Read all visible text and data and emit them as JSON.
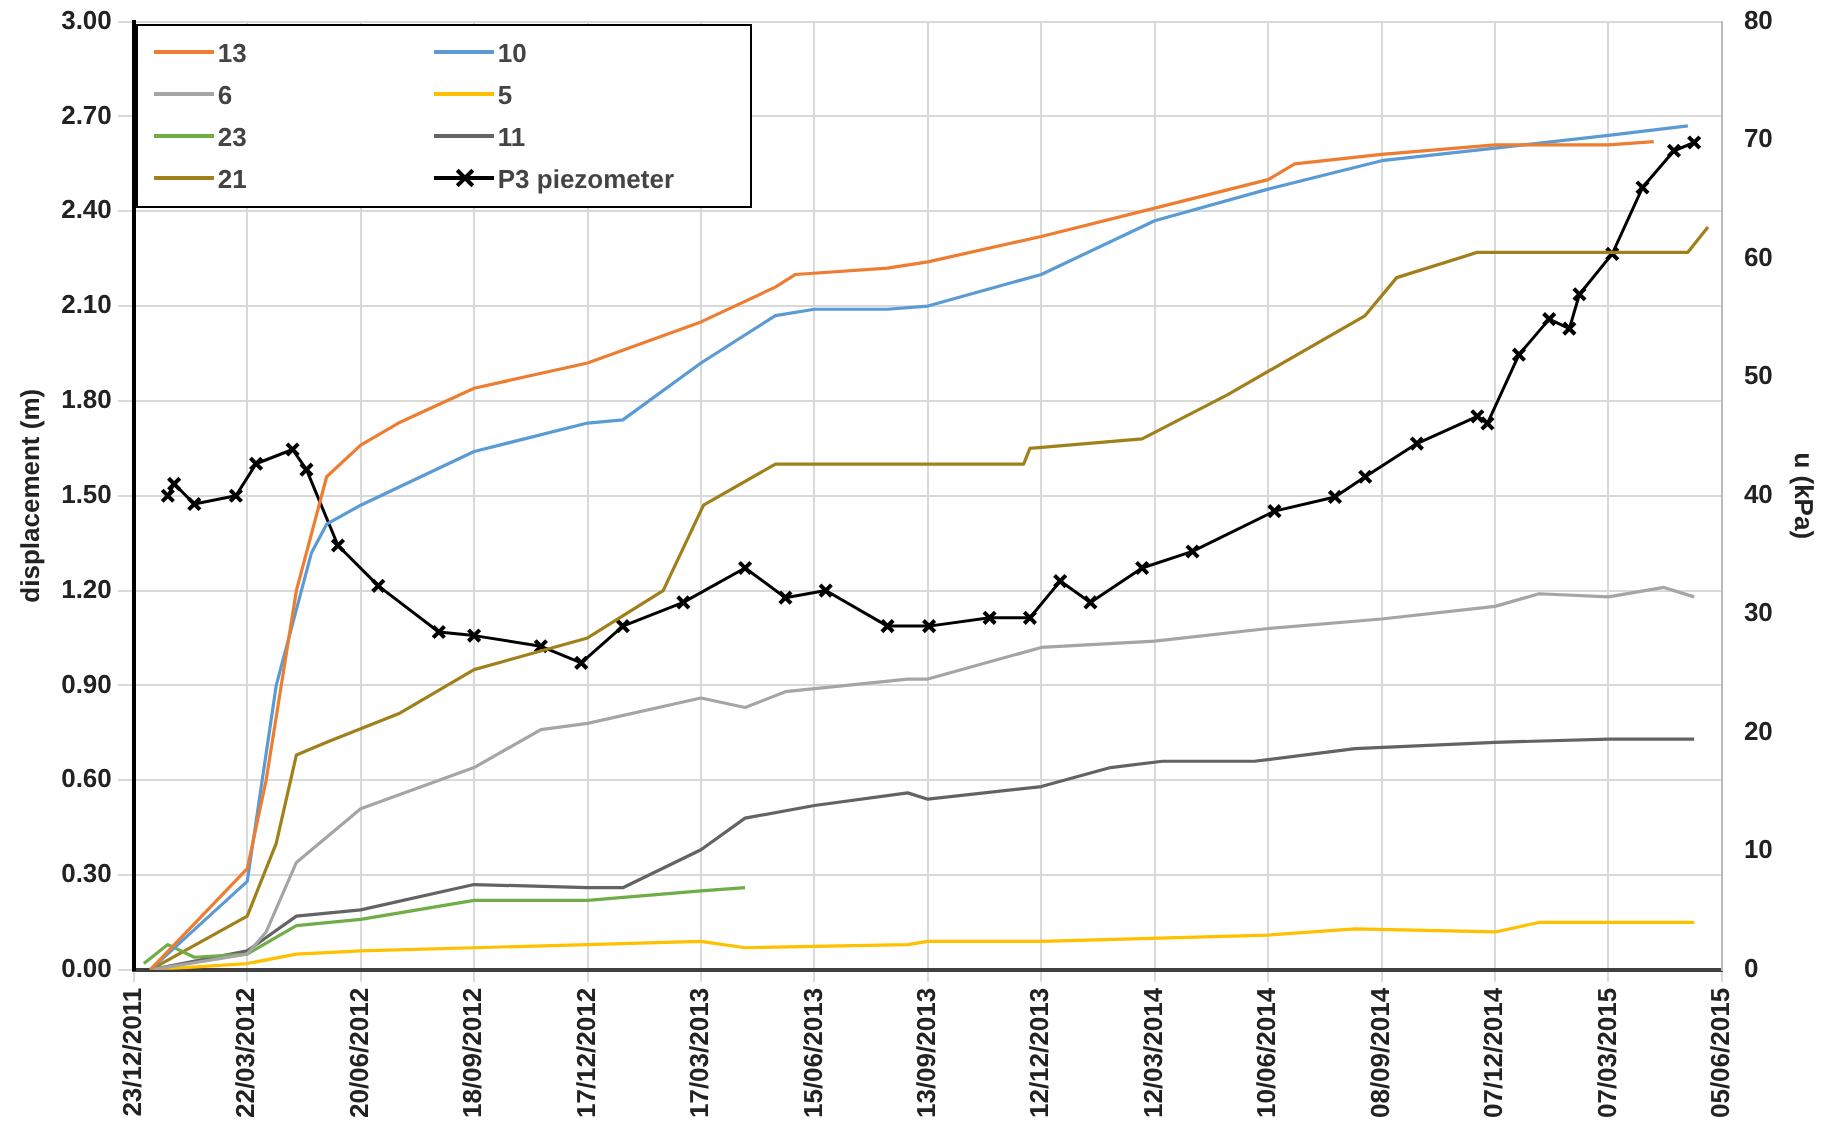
{
  "chart_data": {
    "type": "line",
    "xlabel": null,
    "ylabel": "displacement (m)",
    "y2label": "u (kPa)",
    "xlim": [
      "2011-12-23",
      "2015-06-05"
    ],
    "xticks": [
      {
        "value": "2011-12-23",
        "label": "23/12/2011"
      },
      {
        "value": "2012-03-22",
        "label": "22/03/2012"
      },
      {
        "value": "2012-06-20",
        "label": "20/06/2012"
      },
      {
        "value": "2012-09-18",
        "label": "18/09/2012"
      },
      {
        "value": "2012-12-17",
        "label": "17/12/2012"
      },
      {
        "value": "2013-03-17",
        "label": "17/03/2013"
      },
      {
        "value": "2013-06-15",
        "label": "15/06/2013"
      },
      {
        "value": "2013-09-13",
        "label": "13/09/2013"
      },
      {
        "value": "2013-12-12",
        "label": "12/12/2013"
      },
      {
        "value": "2014-03-12",
        "label": "12/03/2014"
      },
      {
        "value": "2014-06-10",
        "label": "10/06/2014"
      },
      {
        "value": "2014-09-08",
        "label": "08/09/2014"
      },
      {
        "value": "2014-12-07",
        "label": "07/12/2014"
      },
      {
        "value": "2015-03-07",
        "label": "07/03/2015"
      },
      {
        "value": "2015-06-05",
        "label": "05/06/2015"
      }
    ],
    "ylim": [
      0,
      3
    ],
    "yticks": [
      {
        "value": 0,
        "label": "0.00"
      },
      {
        "value": 0.3,
        "label": "0.30"
      },
      {
        "value": 0.6,
        "label": "0.60"
      },
      {
        "value": 0.9,
        "label": "0.90"
      },
      {
        "value": 1.2,
        "label": "1.20"
      },
      {
        "value": 1.5,
        "label": "1.50"
      },
      {
        "value": 1.8,
        "label": "1.80"
      },
      {
        "value": 2.1,
        "label": "2.10"
      },
      {
        "value": 2.4,
        "label": "2.40"
      },
      {
        "value": 2.7,
        "label": "2.70"
      },
      {
        "value": 3,
        "label": "3.00"
      }
    ],
    "y2lim": [
      0,
      80
    ],
    "y2ticks": [
      0,
      10,
      20,
      30,
      40,
      50,
      60,
      70,
      80
    ],
    "grid": true,
    "legend": "top left",
    "marker": "none",
    "line_style": "solid",
    "series": [
      {
        "name": "13",
        "color": "#ed7d31",
        "x": [
          "2012-01-05",
          "2012-03-22",
          "2012-04-06",
          "2012-04-30",
          "2012-05-24",
          "2012-06-20",
          "2012-07-20",
          "2012-09-18",
          "2012-12-17",
          "2013-03-17",
          "2013-05-15",
          "2013-05-31",
          "2013-08-12",
          "2013-09-13",
          "2013-12-12",
          "2014-03-12",
          "2014-06-10",
          "2014-07-01",
          "2014-09-08",
          "2014-12-07",
          "2015-03-07",
          "2015-04-12"
        ],
        "values": [
          0,
          0.32,
          0.6,
          1.2,
          1.56,
          1.66,
          1.73,
          1.84,
          1.92,
          2.05,
          2.16,
          2.2,
          2.22,
          2.24,
          2.32,
          2.41,
          2.5,
          2.55,
          2.58,
          2.61,
          2.61,
          2.62
        ]
      },
      {
        "name": "10",
        "color": "#5b9bd5",
        "x": [
          "2012-01-05",
          "2012-03-22",
          "2012-04-14",
          "2012-05-12",
          "2012-05-24",
          "2012-06-20",
          "2012-09-18",
          "2012-12-17",
          "2013-01-14",
          "2013-03-17",
          "2013-05-15",
          "2013-06-15",
          "2013-08-12",
          "2013-09-13",
          "2013-12-12",
          "2014-03-12",
          "2014-06-10",
          "2014-09-08",
          "2014-12-07",
          "2015-03-07",
          "2015-05-09"
        ],
        "values": [
          0,
          0.28,
          0.9,
          1.32,
          1.41,
          1.47,
          1.64,
          1.73,
          1.74,
          1.92,
          2.07,
          2.09,
          2.09,
          2.1,
          2.2,
          2.37,
          2.47,
          2.56,
          2.6,
          2.64,
          2.67
        ]
      },
      {
        "name": "6",
        "color": "#a5a5a5",
        "x": [
          "2012-01-05",
          "2012-03-22",
          "2012-04-06",
          "2012-04-30",
          "2012-06-20",
          "2012-09-18",
          "2012-11-10",
          "2012-12-17",
          "2013-03-17",
          "2013-04-21",
          "2013-05-23",
          "2013-08-28",
          "2013-09-13",
          "2013-12-12",
          "2014-03-12",
          "2014-06-10",
          "2014-09-08",
          "2014-12-07",
          "2015-01-11",
          "2015-03-07",
          "2015-04-20",
          "2015-05-14"
        ],
        "values": [
          0,
          0.05,
          0.12,
          0.34,
          0.51,
          0.64,
          0.76,
          0.78,
          0.86,
          0.83,
          0.88,
          0.92,
          0.92,
          1.02,
          1.04,
          1.08,
          1.11,
          1.15,
          1.19,
          1.18,
          1.21,
          1.18
        ]
      },
      {
        "name": "5",
        "color": "#ffc000",
        "x": [
          "2012-01-05",
          "2012-03-22",
          "2012-04-30",
          "2012-06-20",
          "2012-12-17",
          "2013-03-17",
          "2013-04-21",
          "2013-08-28",
          "2013-09-13",
          "2013-12-12",
          "2014-06-10",
          "2014-08-18",
          "2014-12-07",
          "2015-01-11",
          "2015-05-14"
        ],
        "values": [
          0,
          0.02,
          0.05,
          0.06,
          0.08,
          0.09,
          0.07,
          0.08,
          0.09,
          0.09,
          0.11,
          0.13,
          0.12,
          0.15,
          0.15
        ]
      },
      {
        "name": "23",
        "color": "#70ad47",
        "x": [
          "2011-12-31",
          "2012-01-19",
          "2012-02-09",
          "2012-03-22",
          "2012-04-30",
          "2012-06-20",
          "2012-09-18",
          "2012-12-17",
          "2013-03-17",
          "2013-04-21"
        ],
        "values": [
          0.02,
          0.08,
          0.04,
          0.05,
          0.14,
          0.16,
          0.22,
          0.22,
          0.25,
          0.26
        ]
      },
      {
        "name": "11",
        "color": "#636363",
        "x": [
          "2012-01-05",
          "2012-03-22",
          "2012-04-30",
          "2012-06-20",
          "2012-09-18",
          "2012-12-17",
          "2013-01-14",
          "2013-03-17",
          "2013-04-21",
          "2013-06-15",
          "2013-08-28",
          "2013-09-13",
          "2013-12-12",
          "2014-02-05",
          "2014-03-18",
          "2014-05-30",
          "2014-08-18",
          "2014-12-07",
          "2015-03-07",
          "2015-05-14"
        ],
        "values": [
          0,
          0.06,
          0.17,
          0.19,
          0.27,
          0.26,
          0.26,
          0.38,
          0.48,
          0.52,
          0.56,
          0.54,
          0.58,
          0.64,
          0.66,
          0.66,
          0.7,
          0.72,
          0.73,
          0.73
        ]
      },
      {
        "name": "21",
        "color": "#a0801a",
        "x": [
          "2012-01-05",
          "2012-03-22",
          "2012-04-14",
          "2012-04-30",
          "2012-05-24",
          "2012-07-20",
          "2012-09-18",
          "2012-12-17",
          "2013-02-15",
          "2013-03-19",
          "2013-05-15",
          "2013-11-28",
          "2013-12-03",
          "2014-03-02",
          "2014-05-09",
          "2014-08-26",
          "2014-09-20",
          "2014-11-23",
          "2015-05-09",
          "2015-05-25"
        ],
        "values": [
          0,
          0.17,
          0.4,
          0.68,
          0.72,
          0.81,
          0.95,
          1.05,
          1.2,
          1.47,
          1.6,
          1.6,
          1.65,
          1.68,
          1.82,
          2.07,
          2.19,
          2.27,
          2.27,
          2.35
        ]
      },
      {
        "name": "P3 piezometer",
        "color": "#000000",
        "axis": "y2",
        "marker": "cross",
        "x": [
          "2012-01-19",
          "2012-01-24",
          "2012-02-09",
          "2012-03-13",
          "2012-03-29",
          "2012-04-27",
          "2012-05-08",
          "2012-06-02",
          "2012-07-04",
          "2012-08-21",
          "2012-09-18",
          "2012-11-10",
          "2012-12-12",
          "2013-01-14",
          "2013-03-03",
          "2013-04-21",
          "2013-05-23",
          "2013-06-24",
          "2013-08-12",
          "2013-09-14",
          "2013-11-01",
          "2013-12-03",
          "2013-12-27",
          "2014-01-20",
          "2014-03-02",
          "2014-04-11",
          "2014-06-15",
          "2014-08-02",
          "2014-08-26",
          "2014-10-06",
          "2014-11-23",
          "2014-12-01",
          "2014-12-26",
          "2015-01-19",
          "2015-02-04",
          "2015-02-12",
          "2015-03-10",
          "2015-04-03",
          "2015-04-28",
          "2015-05-14"
        ],
        "values": [
          40,
          41,
          39.3,
          40,
          42.7,
          43.9,
          42.2,
          35.8,
          32.4,
          28.5,
          28.2,
          27.3,
          25.9,
          29,
          31,
          33.9,
          31.4,
          32,
          29,
          29,
          29.7,
          29.7,
          32.8,
          31,
          33.9,
          35.3,
          38.7,
          39.9,
          41.6,
          44.4,
          46.7,
          46.1,
          51.9,
          54.9,
          54.1,
          57,
          60.4,
          66,
          69.1,
          69.8
        ]
      }
    ]
  }
}
